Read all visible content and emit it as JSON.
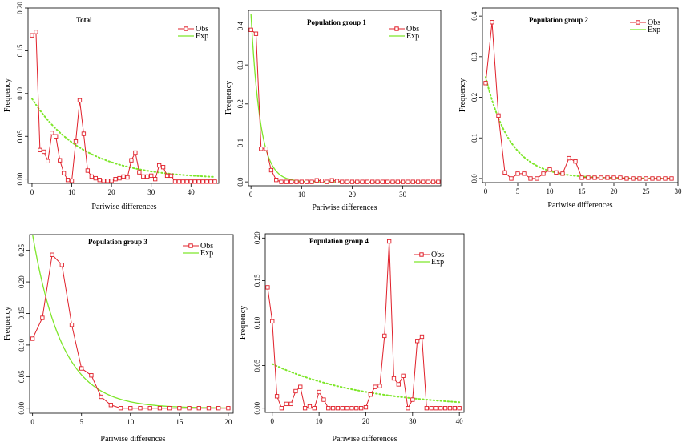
{
  "colors": {
    "obs": "#e0202a",
    "exp": "#7ee62a",
    "axis": "#000000"
  },
  "chart_data": [
    {
      "type": "line",
      "title": "Total",
      "xlabel": "Pariwise differences",
      "ylabel": "Frequency",
      "xlim": [
        -1,
        47
      ],
      "ylim": [
        -0.005,
        0.2
      ],
      "xticks": [
        0,
        10,
        20,
        30,
        40
      ],
      "yticks": [
        0.0,
        0.05,
        0.1,
        0.15,
        0.2
      ],
      "ytick_labels": [
        "0.00",
        "0.05",
        "0.10",
        "0.15",
        "0.20"
      ],
      "legend": {
        "position": "top-right",
        "entries": [
          "Obs",
          "Exp"
        ]
      },
      "series": [
        {
          "name": "Obs",
          "style": "line-square",
          "x": [
            0,
            1,
            2,
            3,
            4,
            5,
            6,
            7,
            8,
            9,
            10,
            11,
            12,
            13,
            14,
            15,
            16,
            17,
            18,
            19,
            20,
            21,
            22,
            23,
            24,
            25,
            26,
            27,
            28,
            29,
            30,
            31,
            32,
            33,
            34,
            35,
            36,
            37,
            38,
            39,
            40,
            41,
            42,
            43,
            44,
            45,
            46
          ],
          "y": [
            0.168,
            0.172,
            0.034,
            0.032,
            0.021,
            0.054,
            0.05,
            0.022,
            0.007,
            -0.001,
            -0.002,
            0.044,
            0.092,
            0.053,
            0.01,
            0.003,
            0.001,
            -0.001,
            -0.002,
            -0.002,
            -0.002,
            0.0,
            0.001,
            0.003,
            0.002,
            0.022,
            0.031,
            0.008,
            0.003,
            0.003,
            0.004,
            0.0,
            0.016,
            0.014,
            0.004,
            0.004,
            -0.003,
            -0.003,
            -0.003,
            -0.003,
            -0.003,
            -0.003,
            -0.003,
            -0.003,
            -0.003,
            -0.003,
            -0.003
          ]
        },
        {
          "name": "Exp",
          "style": "dotted",
          "model": "exp",
          "a": 0.094,
          "k": 0.078,
          "x_range": [
            0,
            46
          ]
        }
      ]
    },
    {
      "type": "line",
      "title": "Population group 1",
      "xlabel": "Pariwise differences",
      "ylabel": "Frequency",
      "xlim": [
        -0.5,
        37.5
      ],
      "ylim": [
        -0.01,
        0.44
      ],
      "xticks": [
        0,
        10,
        20,
        30
      ],
      "yticks": [
        0.0,
        0.1,
        0.2,
        0.3,
        0.4
      ],
      "ytick_labels": [
        "0.0",
        "0.1",
        "0.2",
        "0.3",
        "0.4"
      ],
      "legend": {
        "position": "top-right",
        "entries": [
          "Obs",
          "Exp"
        ]
      },
      "series": [
        {
          "name": "Obs",
          "style": "line-square",
          "x": [
            0,
            1,
            2,
            3,
            4,
            5,
            6,
            7,
            8,
            9,
            10,
            11,
            12,
            13,
            14,
            15,
            16,
            17,
            18,
            19,
            20,
            21,
            22,
            23,
            24,
            25,
            26,
            27,
            28,
            29,
            30,
            31,
            32,
            33,
            34,
            35,
            36,
            37
          ],
          "y": [
            0.39,
            0.38,
            0.085,
            0.085,
            0.03,
            0.005,
            0.0,
            0.0,
            0.0,
            0.0,
            0.0,
            0.0,
            0.0,
            0.004,
            0.003,
            0.0,
            0.004,
            0.002,
            0.0,
            0.0,
            0.0,
            0.0,
            0.0,
            0.0,
            0.0,
            0.0,
            0.0,
            0.0,
            0.0,
            0.0,
            0.0,
            0.0,
            0.0,
            0.0,
            0.0,
            0.0,
            0.0,
            0.0
          ]
        },
        {
          "name": "Exp",
          "style": "solid",
          "model": "exp",
          "a": 0.43,
          "k": 0.55,
          "x_range": [
            0,
            37
          ]
        }
      ]
    },
    {
      "type": "line",
      "title": "Population  group 2",
      "xlabel": "Pariwise differences",
      "ylabel": "Frequency",
      "xlim": [
        -0.5,
        30
      ],
      "ylim": [
        -0.01,
        0.42
      ],
      "xticks": [
        0,
        5,
        10,
        15,
        20,
        25,
        30
      ],
      "yticks": [
        0.0,
        0.1,
        0.2,
        0.3,
        0.4
      ],
      "ytick_labels": [
        "0.0",
        "0.1",
        "0.2",
        "0.3",
        "0.4"
      ],
      "legend": {
        "position": "top-right",
        "entries": [
          "Obs",
          "Exp"
        ]
      },
      "series": [
        {
          "name": "Obs",
          "style": "line-square",
          "x": [
            0,
            1,
            2,
            3,
            4,
            5,
            6,
            7,
            8,
            9,
            10,
            11,
            12,
            13,
            14,
            15,
            16,
            17,
            18,
            19,
            20,
            21,
            22,
            23,
            24,
            25,
            26,
            27,
            28,
            29
          ],
          "y": [
            0.235,
            0.385,
            0.155,
            0.015,
            0.0,
            0.012,
            0.012,
            0.0,
            0.0,
            0.012,
            0.022,
            0.015,
            0.012,
            0.05,
            0.042,
            0.002,
            0.002,
            0.002,
            0.002,
            0.002,
            0.002,
            0.002,
            0.0,
            0.0,
            0.0,
            0.0,
            0.0,
            0.0,
            0.0,
            0.0
          ]
        },
        {
          "name": "Exp",
          "style": "dotted",
          "model": "exp",
          "a": 0.25,
          "k": 0.26,
          "x_range": [
            0,
            29
          ]
        }
      ]
    },
    {
      "type": "line",
      "title": "Population  group 3",
      "xlabel": "Pariwise differences",
      "ylabel": "Frequency",
      "xlim": [
        -0.3,
        20.5
      ],
      "ylim": [
        -0.008,
        0.275
      ],
      "xticks": [
        0,
        5,
        10,
        15,
        20
      ],
      "yticks": [
        0.0,
        0.05,
        0.1,
        0.15,
        0.2,
        0.25
      ],
      "ytick_labels": [
        "0.00",
        "0.05",
        "0.10",
        "0.15",
        "0.20",
        "0.25"
      ],
      "legend": {
        "position": "top-right",
        "entries": [
          "Obs",
          "Exp"
        ]
      },
      "series": [
        {
          "name": "Obs",
          "style": "line-square",
          "x": [
            0,
            1,
            2,
            3,
            4,
            5,
            6,
            7,
            8,
            9,
            10,
            11,
            12,
            13,
            14,
            15,
            16,
            17,
            18,
            19,
            20
          ],
          "y": [
            0.11,
            0.143,
            0.243,
            0.227,
            0.132,
            0.063,
            0.052,
            0.018,
            0.005,
            0.0,
            0.0,
            0.0,
            0.0,
            0.0,
            0.0,
            0.0,
            0.0,
            0.0,
            0.0,
            0.0,
            0.0
          ]
        },
        {
          "name": "Exp",
          "style": "solid-dotted",
          "model": "exp",
          "a": 0.275,
          "k": 0.33,
          "x_range": [
            0,
            20
          ]
        }
      ]
    },
    {
      "type": "line",
      "title": "Population  group 4",
      "xlabel": "Pariwise differences",
      "ylabel": "Frequency",
      "xlim": [
        -1.5,
        41
      ],
      "ylim": [
        -0.005,
        0.205
      ],
      "xticks": [
        0,
        10,
        20,
        30,
        40
      ],
      "yticks": [
        0.0,
        0.05,
        0.1,
        0.15,
        0.2
      ],
      "ytick_labels": [
        "0.00",
        "0.05",
        "0.10",
        "0.15",
        "0.20"
      ],
      "legend": {
        "position": "top-right",
        "entries": [
          "Obs",
          "Exp"
        ]
      },
      "series": [
        {
          "name": "Obs",
          "style": "line-square",
          "x": [
            -1,
            0,
            1,
            2,
            3,
            4,
            5,
            6,
            7,
            8,
            9,
            10,
            11,
            12,
            13,
            14,
            15,
            16,
            17,
            18,
            19,
            20,
            21,
            22,
            23,
            24,
            25,
            26,
            27,
            28,
            29,
            30,
            31,
            32,
            33,
            34,
            35,
            36,
            37,
            38,
            39,
            40
          ],
          "y": [
            0.142,
            0.102,
            0.014,
            0.0,
            0.005,
            0.005,
            0.02,
            0.025,
            0.0,
            0.002,
            0.0,
            0.019,
            0.01,
            0.0,
            0.0,
            0.0,
            0.0,
            0.0,
            0.0,
            0.0,
            0.0,
            0.001,
            0.016,
            0.025,
            0.026,
            0.085,
            0.196,
            0.035,
            0.028,
            0.038,
            0.0,
            0.01,
            0.079,
            0.084,
            0.0,
            0.0,
            0.0,
            0.0,
            0.0,
            0.0,
            0.0,
            0.0
          ]
        },
        {
          "name": "Exp",
          "style": "dotted",
          "model": "exp",
          "a": 0.052,
          "k": 0.05,
          "x_range": [
            0,
            40
          ]
        }
      ]
    }
  ]
}
